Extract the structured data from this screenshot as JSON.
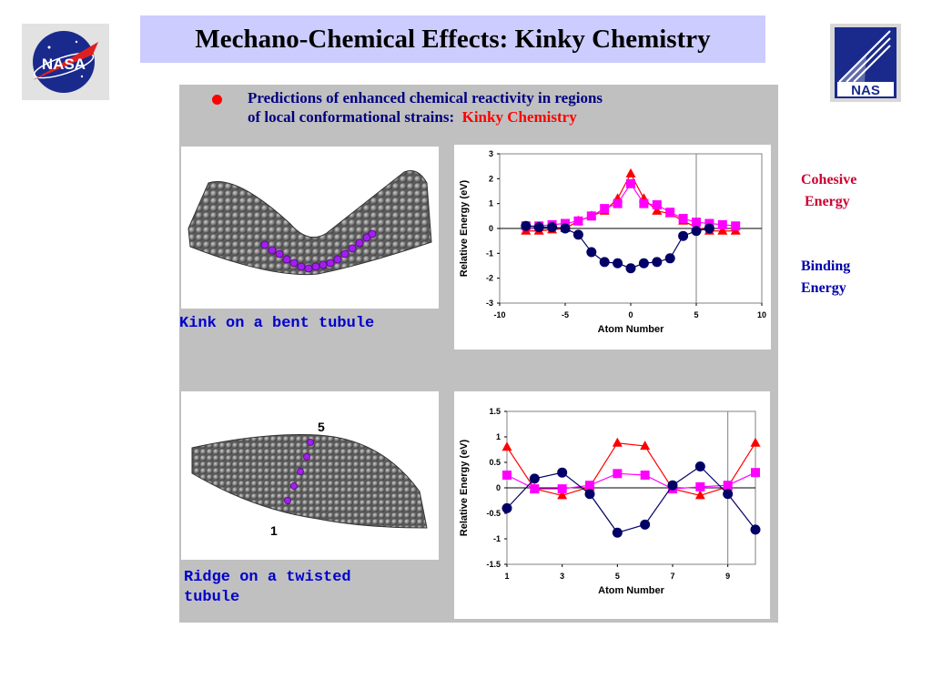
{
  "slide": {
    "title": "Mechano-Chemical Effects: Kinky Chemistry",
    "bullet_line1": "Predictions of enhanced chemical reactivity in regions",
    "bullet_line2_prefix": "of local conformational strains:",
    "bullet_line2_highlight": "Kinky Chemistry",
    "caption_top": "Kink on a bent tubule",
    "caption_bottom_line1": "Ridge on a twisted",
    "caption_bottom_line2": "tubule",
    "ridge_label_top": "5",
    "ridge_label_bottom": "1",
    "legend_cohesive_line1": "Cohesive",
    "legend_cohesive_line2": "Energy",
    "legend_binding_line1": "Binding",
    "legend_binding_line2": "Energy",
    "logo_left_text": "NASA",
    "logo_right_text": "NAS"
  },
  "colors": {
    "title_bg": "#ccccff",
    "panel_bg": "#c0c0c0",
    "bullet_text": "#000080",
    "highlight": "#ff0000",
    "cohesive_red": "#ff0000",
    "binding_navy": "#000066",
    "magenta": "#ff00ff",
    "caption_blue": "#0000cc",
    "atom_purple": "#a020f0"
  },
  "chart_data": [
    {
      "type": "line",
      "xlabel": "Atom Number",
      "ylabel": "Relative Energy (eV)",
      "xlim": [
        -10,
        10
      ],
      "ylim": [
        -3,
        3
      ],
      "xticks": [
        "-10",
        "-5",
        "0",
        "5",
        "10"
      ],
      "yticks": [
        "3",
        "2",
        "1",
        "0",
        "-1",
        "-2",
        "-3"
      ],
      "vline_x": 5,
      "series": [
        {
          "color": "red",
          "marker": "triangle",
          "x": [
            -8,
            -7,
            -6,
            -5,
            -4,
            -3,
            -2,
            -1,
            0,
            1,
            2,
            3,
            4,
            5,
            6,
            7,
            8
          ],
          "y": [
            -0.1,
            -0.1,
            -0.05,
            0,
            0.3,
            0.5,
            0.7,
            1.2,
            2.2,
            1.2,
            0.7,
            0.6,
            0.3,
            0.05,
            -0.1,
            -0.1,
            -0.1
          ]
        },
        {
          "color": "magenta",
          "marker": "square",
          "x": [
            -8,
            -7,
            -6,
            -5,
            -4,
            -3,
            -2,
            -1,
            0,
            1,
            2,
            3,
            4,
            5,
            6,
            7,
            8
          ],
          "y": [
            0.1,
            0.1,
            0.15,
            0.2,
            0.3,
            0.5,
            0.8,
            1.0,
            1.8,
            1.0,
            0.95,
            0.65,
            0.4,
            0.25,
            0.2,
            0.15,
            0.1
          ]
        },
        {
          "color": "navy",
          "marker": "circle",
          "x": [
            -8,
            -7,
            -6,
            -5,
            -4,
            -3,
            -2,
            -1,
            0,
            1,
            2,
            3,
            4,
            5,
            6
          ],
          "y": [
            0.1,
            0.05,
            0.05,
            0,
            -0.25,
            -0.95,
            -1.35,
            -1.4,
            -1.6,
            -1.4,
            -1.35,
            -1.2,
            -0.3,
            -0.1,
            0
          ]
        }
      ]
    },
    {
      "type": "line",
      "xlabel": "Atom Number",
      "ylabel": "Relative Energy (eV)",
      "xlim": [
        1,
        10
      ],
      "ylim": [
        -1.5,
        1.5
      ],
      "xticks": [
        "1",
        "3",
        "5",
        "7",
        "9"
      ],
      "yticks": [
        "1.5",
        "1",
        "0.5",
        "0",
        "-0.5",
        "-1",
        "-1.5"
      ],
      "vline_x": 9,
      "series": [
        {
          "color": "red",
          "marker": "triangle",
          "x": [
            1,
            2,
            3,
            4,
            5,
            6,
            7,
            8,
            9,
            10
          ],
          "y": [
            0.8,
            -0.02,
            -0.15,
            0.02,
            0.88,
            0.82,
            -0.02,
            -0.15,
            0.02,
            0.88
          ]
        },
        {
          "color": "magenta",
          "marker": "square",
          "x": [
            1,
            2,
            3,
            4,
            5,
            6,
            7,
            8,
            9,
            10
          ],
          "y": [
            0.25,
            -0.02,
            -0.02,
            0.05,
            0.28,
            0.25,
            -0.02,
            0.02,
            0.05,
            0.3
          ]
        },
        {
          "color": "navy",
          "marker": "circle",
          "x": [
            1,
            2,
            3,
            4,
            5,
            6,
            7,
            8,
            9,
            10
          ],
          "y": [
            -0.4,
            0.18,
            0.3,
            -0.12,
            -0.88,
            -0.72,
            0.05,
            0.42,
            -0.12,
            -0.82
          ]
        }
      ]
    }
  ]
}
